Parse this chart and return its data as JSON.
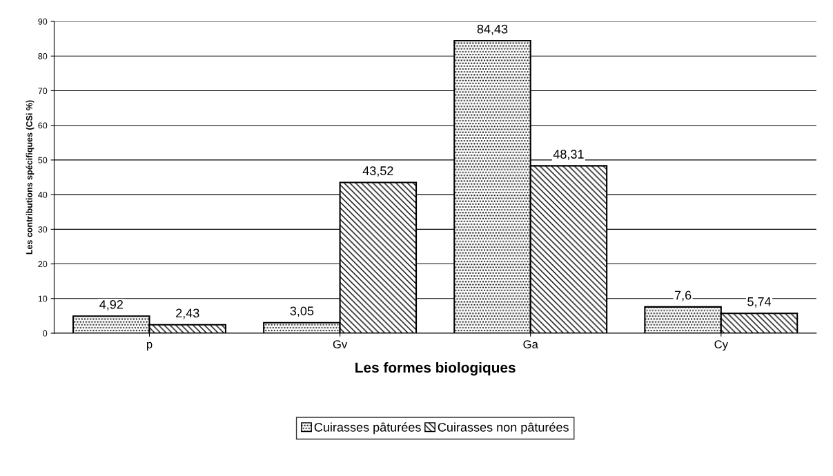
{
  "chart_data": {
    "type": "bar",
    "xlabel": "Les formes biologiques",
    "ylabel": "Les contributions spécifiques (CSi %)",
    "categories": [
      "p",
      "Gv",
      "Ga",
      "Cy"
    ],
    "series": [
      {
        "name": "Cuirasses pâturées",
        "color": "#000000",
        "values": [
          4.92,
          3.05,
          84.43,
          7.6
        ],
        "value_labels": [
          "4,92",
          "3,05",
          "84,43",
          "7,6"
        ]
      },
      {
        "name": "Cuirasses non pâturées",
        "color": "#000000",
        "values": [
          2.43,
          43.52,
          48.31,
          5.74
        ],
        "value_labels": [
          "2,43",
          "43,52",
          "48,31",
          "5,74"
        ]
      }
    ],
    "ylim": [
      0,
      90
    ],
    "yticks": [
      0,
      10,
      20,
      30,
      40,
      50,
      60,
      70,
      80,
      90
    ],
    "grid": "y",
    "legend": "bottom"
  }
}
